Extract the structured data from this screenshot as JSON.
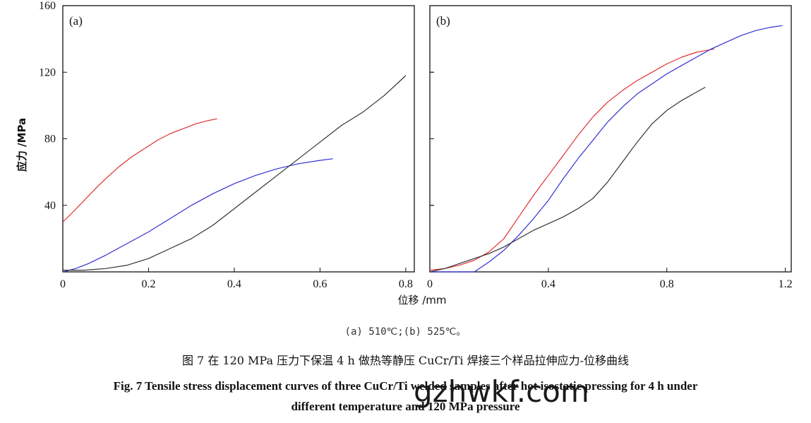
{
  "panels": [
    {
      "label": "(a)",
      "xlim": [
        0,
        0.82
      ],
      "ylim": [
        0,
        160
      ],
      "xticks": [
        0,
        0.2,
        0.4,
        0.6,
        0.8
      ],
      "yticks": [
        40,
        80,
        120,
        160
      ],
      "series": [
        {
          "color": "#e03030",
          "points": [
            [
              0.0,
              30
            ],
            [
              0.02,
              35
            ],
            [
              0.05,
              43
            ],
            [
              0.08,
              51
            ],
            [
              0.1,
              56
            ],
            [
              0.13,
              63
            ],
            [
              0.16,
              69
            ],
            [
              0.19,
              74
            ],
            [
              0.22,
              79
            ],
            [
              0.25,
              83
            ],
            [
              0.28,
              86
            ],
            [
              0.31,
              89
            ],
            [
              0.34,
              91
            ],
            [
              0.36,
              92
            ]
          ]
        },
        {
          "color": "#3030d8",
          "points": [
            [
              0.0,
              0
            ],
            [
              0.03,
              2
            ],
            [
              0.06,
              5
            ],
            [
              0.1,
              10
            ],
            [
              0.15,
              17
            ],
            [
              0.2,
              24
            ],
            [
              0.25,
              32
            ],
            [
              0.3,
              40
            ],
            [
              0.35,
              47
            ],
            [
              0.4,
              53
            ],
            [
              0.45,
              58
            ],
            [
              0.5,
              62
            ],
            [
              0.55,
              65
            ],
            [
              0.6,
              67
            ],
            [
              0.63,
              68
            ]
          ]
        },
        {
          "color": "#333333",
          "points": [
            [
              0.0,
              1
            ],
            [
              0.05,
              1
            ],
            [
              0.1,
              2
            ],
            [
              0.15,
              4
            ],
            [
              0.2,
              8
            ],
            [
              0.25,
              14
            ],
            [
              0.3,
              20
            ],
            [
              0.35,
              28
            ],
            [
              0.4,
              38
            ],
            [
              0.45,
              48
            ],
            [
              0.5,
              58
            ],
            [
              0.55,
              68
            ],
            [
              0.6,
              78
            ],
            [
              0.65,
              88
            ],
            [
              0.7,
              96
            ],
            [
              0.75,
              106
            ],
            [
              0.8,
              118
            ]
          ]
        }
      ]
    },
    {
      "label": "(b)",
      "xlim": [
        0,
        1.22
      ],
      "ylim": [
        0,
        160
      ],
      "xticks": [
        0,
        0.4,
        0.8,
        1.2
      ],
      "yticks": [
        40,
        80,
        120,
        160
      ],
      "series": [
        {
          "color": "#e03030",
          "points": [
            [
              0.0,
              1
            ],
            [
              0.05,
              2
            ],
            [
              0.1,
              4
            ],
            [
              0.15,
              7
            ],
            [
              0.2,
              12
            ],
            [
              0.25,
              20
            ],
            [
              0.3,
              33
            ],
            [
              0.35,
              46
            ],
            [
              0.4,
              58
            ],
            [
              0.45,
              70
            ],
            [
              0.5,
              82
            ],
            [
              0.55,
              93
            ],
            [
              0.6,
              102
            ],
            [
              0.65,
              109
            ],
            [
              0.7,
              115
            ],
            [
              0.75,
              120
            ],
            [
              0.8,
              125
            ],
            [
              0.85,
              129
            ],
            [
              0.9,
              132
            ],
            [
              0.96,
              134
            ]
          ]
        },
        {
          "color": "#3030d8",
          "points": [
            [
              0.0,
              0
            ],
            [
              0.1,
              0
            ],
            [
              0.15,
              0
            ],
            [
              0.2,
              6
            ],
            [
              0.25,
              13
            ],
            [
              0.3,
              22
            ],
            [
              0.35,
              32
            ],
            [
              0.4,
              43
            ],
            [
              0.45,
              56
            ],
            [
              0.5,
              68
            ],
            [
              0.55,
              79
            ],
            [
              0.6,
              90
            ],
            [
              0.65,
              99
            ],
            [
              0.7,
              107
            ],
            [
              0.75,
              113
            ],
            [
              0.8,
              119
            ],
            [
              0.85,
              124
            ],
            [
              0.9,
              129
            ],
            [
              0.95,
              134
            ],
            [
              1.0,
              138
            ],
            [
              1.05,
              142
            ],
            [
              1.1,
              145
            ],
            [
              1.15,
              147
            ],
            [
              1.19,
              148
            ]
          ]
        },
        {
          "color": "#333333",
          "points": [
            [
              0.0,
              0
            ],
            [
              0.05,
              2
            ],
            [
              0.1,
              5
            ],
            [
              0.15,
              8
            ],
            [
              0.2,
              11
            ],
            [
              0.25,
              15
            ],
            [
              0.3,
              20
            ],
            [
              0.35,
              25
            ],
            [
              0.4,
              29
            ],
            [
              0.45,
              33
            ],
            [
              0.5,
              38
            ],
            [
              0.55,
              44
            ],
            [
              0.6,
              54
            ],
            [
              0.65,
              66
            ],
            [
              0.7,
              78
            ],
            [
              0.75,
              89
            ],
            [
              0.8,
              97
            ],
            [
              0.85,
              103
            ],
            [
              0.9,
              108
            ],
            [
              0.93,
              111
            ]
          ]
        }
      ]
    }
  ],
  "y_axis_label": "应力 /MPa",
  "x_axis_label": "位移 /mm",
  "caption_sub": "(a) 510℃;(b) 525℃。",
  "caption_cn": "图 7   在 120 MPa 压力下保温 4 h 做热等静压 CuCr/Ti 焊接三个样品拉伸应力-位移曲线",
  "caption_en_line1": "Fig. 7   Tensile stress displacement curves of three CuCr/Ti welded samples after hot isostatic pressing for 4 h under",
  "caption_en_line2": "different temperature and 120 MPa pressure",
  "watermark": "gzhwkf.com",
  "chart_data": [
    {
      "type": "line",
      "title": "(a)",
      "xlabel": "位移 /mm",
      "ylabel": "应力 /MPa",
      "xlim": [
        0,
        0.82
      ],
      "ylim": [
        0,
        160
      ],
      "series": [
        {
          "x": [
            0.0,
            0.02,
            0.05,
            0.08,
            0.1,
            0.13,
            0.16,
            0.19,
            0.22,
            0.25,
            0.28,
            0.31,
            0.34,
            0.36
          ],
          "y": [
            30,
            35,
            43,
            51,
            56,
            63,
            69,
            74,
            79,
            83,
            86,
            89,
            91,
            92
          ]
        },
        {
          "x": [
            0.0,
            0.03,
            0.06,
            0.1,
            0.15,
            0.2,
            0.25,
            0.3,
            0.35,
            0.4,
            0.45,
            0.5,
            0.55,
            0.6,
            0.63
          ],
          "y": [
            0,
            2,
            5,
            10,
            17,
            24,
            32,
            40,
            47,
            53,
            58,
            62,
            65,
            67,
            68
          ]
        },
        {
          "x": [
            0.0,
            0.05,
            0.1,
            0.15,
            0.2,
            0.25,
            0.3,
            0.35,
            0.4,
            0.45,
            0.5,
            0.55,
            0.6,
            0.65,
            0.7,
            0.75,
            0.8
          ],
          "y": [
            1,
            1,
            2,
            4,
            8,
            14,
            20,
            28,
            38,
            48,
            58,
            68,
            78,
            88,
            96,
            106,
            118
          ]
        }
      ]
    },
    {
      "type": "line",
      "title": "(b)",
      "xlabel": "位移 /mm",
      "ylabel": "应力 /MPa",
      "xlim": [
        0,
        1.22
      ],
      "ylim": [
        0,
        160
      ],
      "series": [
        {
          "x": [
            0.0,
            0.05,
            0.1,
            0.15,
            0.2,
            0.25,
            0.3,
            0.35,
            0.4,
            0.45,
            0.5,
            0.55,
            0.6,
            0.65,
            0.7,
            0.75,
            0.8,
            0.85,
            0.9,
            0.96
          ],
          "y": [
            1,
            2,
            4,
            7,
            12,
            20,
            33,
            46,
            58,
            70,
            82,
            93,
            102,
            109,
            115,
            120,
            125,
            129,
            132,
            134
          ]
        },
        {
          "x": [
            0.0,
            0.1,
            0.15,
            0.2,
            0.25,
            0.3,
            0.35,
            0.4,
            0.45,
            0.5,
            0.55,
            0.6,
            0.65,
            0.7,
            0.75,
            0.8,
            0.85,
            0.9,
            0.95,
            1.0,
            1.05,
            1.1,
            1.15,
            1.19
          ],
          "y": [
            0,
            0,
            0,
            6,
            13,
            22,
            32,
            43,
            56,
            68,
            79,
            90,
            99,
            107,
            113,
            119,
            124,
            129,
            134,
            138,
            142,
            145,
            147,
            148
          ]
        },
        {
          "x": [
            0.0,
            0.05,
            0.1,
            0.15,
            0.2,
            0.25,
            0.3,
            0.35,
            0.4,
            0.45,
            0.5,
            0.55,
            0.6,
            0.65,
            0.7,
            0.75,
            0.8,
            0.85,
            0.9,
            0.93
          ],
          "y": [
            0,
            2,
            5,
            8,
            11,
            15,
            20,
            25,
            29,
            33,
            38,
            44,
            54,
            66,
            78,
            89,
            97,
            103,
            108,
            111
          ]
        }
      ]
    }
  ]
}
